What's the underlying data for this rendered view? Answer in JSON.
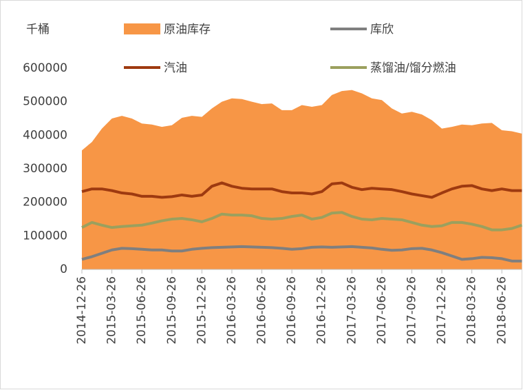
{
  "chart_data": {
    "type": "line",
    "y_axis_label": "千桶",
    "categories": [
      "2014-12-26",
      null,
      null,
      "2015-03-26",
      null,
      null,
      "2015-06-26",
      null,
      null,
      "2015-09-26",
      null,
      null,
      "2015-12-26",
      null,
      null,
      "2016-03-26",
      null,
      null,
      "2016-06-26",
      null,
      null,
      "2016-09-26",
      null,
      null,
      "2016-12-26",
      null,
      null,
      "2017-03-26",
      null,
      null,
      "2017-06-26",
      null,
      null,
      "2017-09-26",
      null,
      null,
      "2017-12-26",
      null,
      null,
      "2018-03-26",
      null,
      null,
      "2018-06-26",
      null,
      null
    ],
    "series": [
      {
        "name": "原油库存",
        "mark": "area",
        "color": "#f79646",
        "values": [
          355000,
          380000,
          420000,
          450000,
          458000,
          450000,
          435000,
          432000,
          425000,
          430000,
          452000,
          458000,
          455000,
          480000,
          500000,
          510000,
          508000,
          500000,
          493000,
          495000,
          475000,
          475000,
          490000,
          485000,
          490000,
          520000,
          532000,
          535000,
          525000,
          510000,
          505000,
          480000,
          465000,
          470000,
          462000,
          445000,
          420000,
          425000,
          432000,
          430000,
          435000,
          437000,
          415000,
          412000,
          405000
        ]
      },
      {
        "name": "库欣",
        "mark": "line",
        "color": "#7f7f7f",
        "values": [
          30000,
          38000,
          48000,
          58000,
          63000,
          62000,
          60000,
          58000,
          58000,
          55000,
          55000,
          60000,
          63000,
          65000,
          66000,
          67000,
          68000,
          67000,
          66000,
          65000,
          63000,
          60000,
          62000,
          66000,
          67000,
          66000,
          67000,
          68000,
          66000,
          64000,
          60000,
          57000,
          58000,
          62000,
          63000,
          58000,
          50000,
          40000,
          30000,
          32000,
          36000,
          35000,
          32000,
          25000,
          25000
        ]
      },
      {
        "name": "汽油",
        "mark": "line",
        "color": "#9e3a10",
        "values": [
          232000,
          240000,
          240000,
          235000,
          228000,
          225000,
          218000,
          218000,
          215000,
          217000,
          222000,
          218000,
          222000,
          248000,
          258000,
          248000,
          242000,
          240000,
          240000,
          240000,
          232000,
          228000,
          228000,
          225000,
          232000,
          255000,
          258000,
          245000,
          238000,
          242000,
          240000,
          238000,
          232000,
          225000,
          220000,
          215000,
          228000,
          240000,
          248000,
          250000,
          240000,
          235000,
          240000,
          235000,
          235000
        ]
      },
      {
        "name": "蒸馏油/馏分燃油",
        "mark": "line",
        "color": "#9ba05e",
        "values": [
          125000,
          140000,
          132000,
          125000,
          128000,
          130000,
          132000,
          138000,
          145000,
          150000,
          152000,
          148000,
          142000,
          152000,
          165000,
          162000,
          162000,
          160000,
          152000,
          150000,
          152000,
          158000,
          162000,
          150000,
          155000,
          168000,
          170000,
          158000,
          150000,
          148000,
          152000,
          150000,
          148000,
          140000,
          132000,
          128000,
          130000,
          140000,
          140000,
          135000,
          128000,
          118000,
          118000,
          122000,
          132000
        ]
      }
    ],
    "ylim": [
      0,
      600000
    ],
    "yticks": [
      0,
      100000,
      200000,
      300000,
      400000,
      500000,
      600000
    ],
    "grid": false
  }
}
